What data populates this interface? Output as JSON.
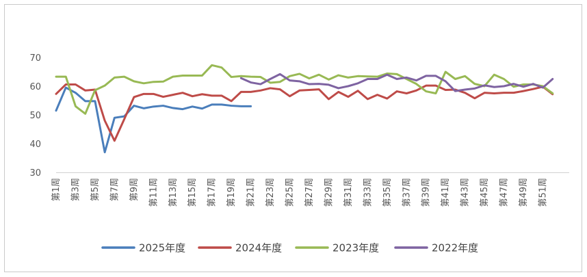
{
  "chart_data": {
    "type": "line",
    "title": "",
    "xlabel": "",
    "ylabel": "",
    "ylim": [
      30,
      70
    ],
    "yticks": [
      30,
      40,
      50,
      60,
      70
    ],
    "grid": false,
    "legend_position": "bottom",
    "categories": [
      "第1周",
      "第2周",
      "第3周",
      "第4周",
      "第5周",
      "第6周",
      "第7周",
      "第8周",
      "第9周",
      "第10周",
      "第11周",
      "第12周",
      "第13周",
      "第14周",
      "第15周",
      "第16周",
      "第17周",
      "第18周",
      "第19周",
      "第20周",
      "第21周",
      "第22周",
      "第23周",
      "第24周",
      "第25周",
      "第26周",
      "第27周",
      "第28周",
      "第29周",
      "第30周",
      "第31周",
      "第32周",
      "第33周",
      "第34周",
      "第35周",
      "第36周",
      "第37周",
      "第38周",
      "第39周",
      "第40周",
      "第41周",
      "第42周",
      "第43周",
      "第44周",
      "第45周",
      "第46周",
      "第47周",
      "第48周",
      "第49周",
      "第50周",
      "第51周",
      "第52周"
    ],
    "tick_labels": [
      "第1周",
      "第3周",
      "第5周",
      "第7周",
      "第9周",
      "第11周",
      "第13周",
      "第15周",
      "第17周",
      "第19周",
      "第21周",
      "第23周",
      "第25周",
      "第27周",
      "第29周",
      "第31周",
      "第33周",
      "第35周",
      "第37周",
      "第39周",
      "第41周",
      "第43周",
      "第45周",
      "第47周",
      "第49周",
      "第51周"
    ],
    "series": [
      {
        "name": "2025年度",
        "color": "#4a7ebb",
        "values": [
          51.5,
          59.5,
          57.7,
          54.8,
          54.8,
          37.0,
          49.0,
          49.5,
          53.2,
          52.3,
          52.9,
          53.2,
          52.4,
          52.0,
          52.9,
          52.2,
          53.6,
          53.6,
          53.2,
          53.0,
          53.0,
          null,
          null,
          null,
          null,
          null,
          null,
          null,
          null,
          null,
          null,
          null,
          null,
          null,
          null,
          null,
          null,
          null,
          null,
          null,
          null,
          null,
          null,
          null,
          null,
          null,
          null,
          null,
          null,
          null,
          null,
          null
        ]
      },
      {
        "name": "2024年度",
        "color": "#be4b48",
        "values": [
          57.3,
          60.6,
          60.6,
          58.5,
          58.8,
          48.0,
          41.0,
          48.5,
          56.2,
          57.3,
          57.3,
          56.3,
          57.0,
          57.7,
          56.5,
          57.2,
          56.7,
          56.7,
          54.8,
          58.0,
          58.0,
          58.5,
          59.3,
          58.9,
          56.5,
          58.5,
          58.7,
          58.9,
          55.5,
          58.0,
          56.3,
          58.4,
          55.5,
          57.0,
          55.7,
          58.2,
          57.5,
          58.5,
          60.2,
          60.2,
          58.7,
          58.8,
          57.7,
          55.8,
          57.7,
          57.5,
          57.7,
          57.7,
          58.3,
          59.0,
          59.8,
          57.2
        ]
      },
      {
        "name": "2023年度",
        "color": "#98b954",
        "values": [
          63.3,
          63.3,
          53.0,
          50.4,
          58.6,
          60.2,
          63.0,
          63.3,
          61.7,
          61.0,
          61.5,
          61.6,
          63.3,
          63.7,
          63.7,
          63.7,
          67.3,
          66.5,
          63.2,
          63.5,
          63.3,
          63.2,
          61.2,
          61.5,
          63.5,
          64.3,
          62.7,
          64.0,
          62.3,
          63.8,
          63.0,
          63.5,
          63.4,
          63.3,
          64.4,
          64.2,
          62.5,
          60.8,
          58.2,
          57.5,
          65.0,
          62.5,
          63.5,
          60.8,
          60.0,
          64.0,
          62.5,
          59.8,
          60.6,
          60.6,
          60.0,
          57.5
        ]
      },
      {
        "name": "2022年度",
        "color": "#7e63a1",
        "values": [
          null,
          null,
          null,
          null,
          null,
          null,
          null,
          null,
          null,
          null,
          null,
          null,
          null,
          null,
          null,
          null,
          null,
          null,
          null,
          62.8,
          61.3,
          60.7,
          62.5,
          64.2,
          62.0,
          61.7,
          60.7,
          60.8,
          60.5,
          59.3,
          60.0,
          61.0,
          62.5,
          62.5,
          64.0,
          62.5,
          63.0,
          62.0,
          63.6,
          63.6,
          61.7,
          58.3,
          58.8,
          59.2,
          60.3,
          59.7,
          60.0,
          60.8,
          59.8,
          60.8,
          59.5,
          62.5
        ]
      }
    ]
  }
}
